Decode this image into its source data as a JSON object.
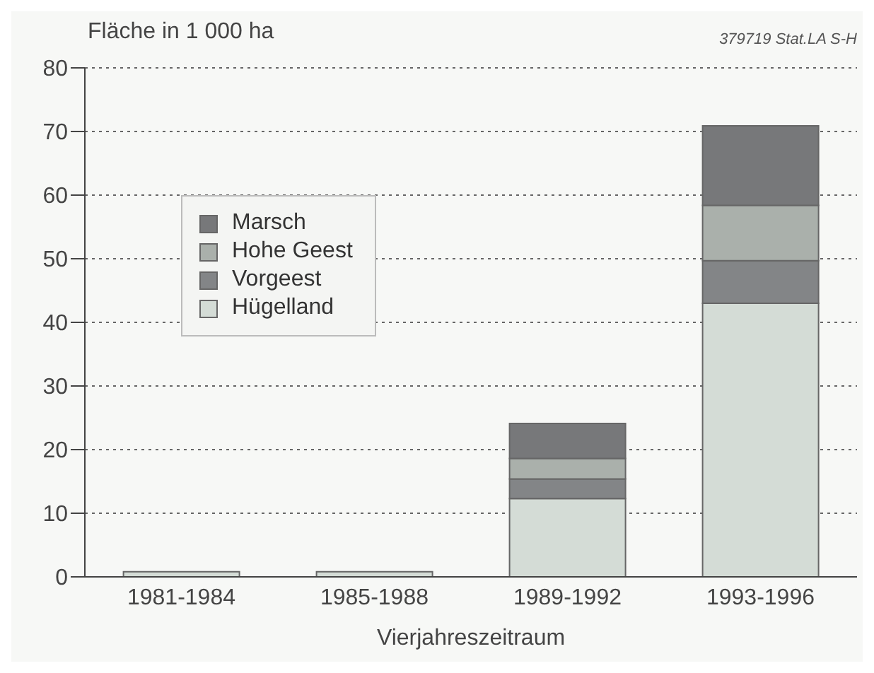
{
  "chart_data": {
    "type": "bar",
    "stacked": true,
    "ylabel": "Fläche in 1 000 ha",
    "xlabel": "Vierjahreszeitraum",
    "annotations": [
      "379719 Stat.LA S-H"
    ],
    "categories": [
      "1981-1984",
      "1985-1988",
      "1989-1992",
      "1993-1996"
    ],
    "series": [
      {
        "name": "Hügelland",
        "color": "#d4dcd6",
        "values": [
          0.8,
          0.8,
          12.3,
          43
        ]
      },
      {
        "name": "Vorgeest",
        "color": "#838587",
        "values": [
          0,
          0,
          3.1,
          6.7
        ]
      },
      {
        "name": "Hohe Geest",
        "color": "#aab0ab",
        "values": [
          0,
          0,
          3.2,
          8.7
        ]
      },
      {
        "name": "Marsch",
        "color": "#77787a",
        "values": [
          0,
          0,
          5.5,
          12.5
        ]
      }
    ],
    "ylim": [
      0,
      80
    ],
    "yticks": [
      0,
      10,
      20,
      30,
      40,
      50,
      60,
      70,
      80
    ],
    "grid": "y",
    "legend": "left"
  }
}
